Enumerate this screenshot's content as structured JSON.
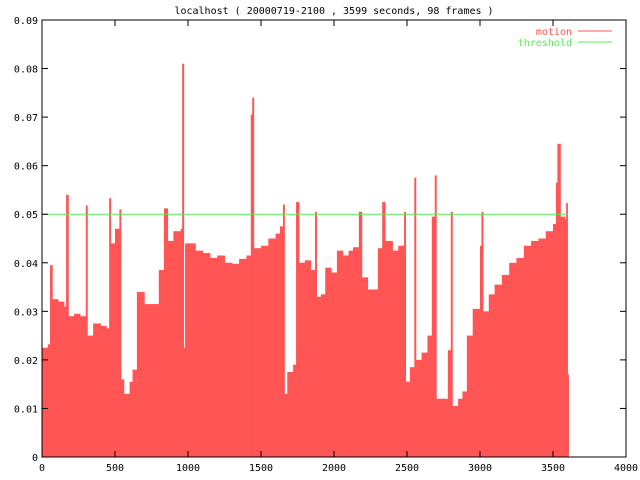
{
  "chart_data": {
    "type": "bar",
    "title": "localhost ( 20000719-2100 , 3599 seconds, 98 frames )",
    "xlabel": "",
    "ylabel": "",
    "xlim": [
      0,
      4000
    ],
    "ylim": [
      0,
      0.09
    ],
    "x_ticks": [
      "0",
      "500",
      "1000",
      "1500",
      "2000",
      "2500",
      "3000",
      "3500",
      "4000"
    ],
    "y_ticks": [
      "0",
      "0.01",
      "0.02",
      "0.03",
      "0.04",
      "0.05",
      "0.06",
      "0.07",
      "0.08",
      "0.09"
    ],
    "grid": false,
    "legend_position": "top-right",
    "series": [
      {
        "name": "motion",
        "color": "#ff5555",
        "points": [
          [
            0,
            0.0225
          ],
          [
            40,
            0.0232
          ],
          [
            55,
            0.0395
          ],
          [
            70,
            0.0325
          ],
          [
            110,
            0.032
          ],
          [
            150,
            0.031
          ],
          [
            165,
            0.054
          ],
          [
            180,
            0.029
          ],
          [
            220,
            0.0295
          ],
          [
            260,
            0.029
          ],
          [
            300,
            0.0518
          ],
          [
            310,
            0.025
          ],
          [
            350,
            0.0275
          ],
          [
            400,
            0.027
          ],
          [
            440,
            0.0265
          ],
          [
            460,
            0.0533
          ],
          [
            470,
            0.044
          ],
          [
            500,
            0.047
          ],
          [
            530,
            0.051
          ],
          [
            540,
            0.016
          ],
          [
            560,
            0.013
          ],
          [
            600,
            0.0155
          ],
          [
            620,
            0.018
          ],
          [
            650,
            0.034
          ],
          [
            700,
            0.0315
          ],
          [
            760,
            0.0315
          ],
          [
            800,
            0.0385
          ],
          [
            835,
            0.0512
          ],
          [
            860,
            0.0445
          ],
          [
            900,
            0.0465
          ],
          [
            950,
            0.047
          ],
          [
            960,
            0.081
          ],
          [
            970,
            0.0225
          ],
          [
            980,
            0.044
          ],
          [
            1050,
            0.0425
          ],
          [
            1100,
            0.042
          ],
          [
            1150,
            0.041
          ],
          [
            1200,
            0.0415
          ],
          [
            1250,
            0.04
          ],
          [
            1300,
            0.0398
          ],
          [
            1350,
            0.0408
          ],
          [
            1400,
            0.0415
          ],
          [
            1430,
            0.0705
          ],
          [
            1440,
            0.074
          ],
          [
            1450,
            0.043
          ],
          [
            1500,
            0.0435
          ],
          [
            1550,
            0.045
          ],
          [
            1600,
            0.046
          ],
          [
            1630,
            0.0475
          ],
          [
            1650,
            0.052
          ],
          [
            1660,
            0.013
          ],
          [
            1680,
            0.0175
          ],
          [
            1720,
            0.019
          ],
          [
            1740,
            0.0525
          ],
          [
            1760,
            0.04
          ],
          [
            1800,
            0.0405
          ],
          [
            1840,
            0.0385
          ],
          [
            1870,
            0.0505
          ],
          [
            1880,
            0.033
          ],
          [
            1910,
            0.0335
          ],
          [
            1940,
            0.039
          ],
          [
            1980,
            0.038
          ],
          [
            2020,
            0.0425
          ],
          [
            2060,
            0.0415
          ],
          [
            2100,
            0.0425
          ],
          [
            2130,
            0.0432
          ],
          [
            2170,
            0.0505
          ],
          [
            2190,
            0.037
          ],
          [
            2230,
            0.0345
          ],
          [
            2270,
            0.0345
          ],
          [
            2300,
            0.043
          ],
          [
            2330,
            0.0525
          ],
          [
            2350,
            0.0445
          ],
          [
            2400,
            0.0425
          ],
          [
            2440,
            0.0435
          ],
          [
            2480,
            0.0505
          ],
          [
            2490,
            0.0155
          ],
          [
            2520,
            0.0185
          ],
          [
            2550,
            0.0575
          ],
          [
            2560,
            0.02
          ],
          [
            2600,
            0.0215
          ],
          [
            2640,
            0.025
          ],
          [
            2670,
            0.0495
          ],
          [
            2690,
            0.058
          ],
          [
            2700,
            0.012
          ],
          [
            2750,
            0.012
          ],
          [
            2780,
            0.022
          ],
          [
            2800,
            0.0505
          ],
          [
            2810,
            0.0105
          ],
          [
            2850,
            0.012
          ],
          [
            2880,
            0.0135
          ],
          [
            2910,
            0.025
          ],
          [
            2950,
            0.0305
          ],
          [
            3000,
            0.0435
          ],
          [
            3010,
            0.0505
          ],
          [
            3020,
            0.03
          ],
          [
            3060,
            0.0335
          ],
          [
            3100,
            0.0355
          ],
          [
            3150,
            0.0375
          ],
          [
            3200,
            0.04
          ],
          [
            3250,
            0.041
          ],
          [
            3300,
            0.0435
          ],
          [
            3350,
            0.0445
          ],
          [
            3400,
            0.045
          ],
          [
            3450,
            0.0465
          ],
          [
            3500,
            0.048
          ],
          [
            3520,
            0.0565
          ],
          [
            3530,
            0.0645
          ],
          [
            3550,
            0.0495
          ],
          [
            3580,
            0.049
          ],
          [
            3590,
            0.0523
          ],
          [
            3599,
            0.017
          ]
        ]
      },
      {
        "name": "threshold",
        "color": "#55ee55",
        "value": 0.05,
        "x_range": [
          0,
          3599
        ]
      }
    ]
  }
}
